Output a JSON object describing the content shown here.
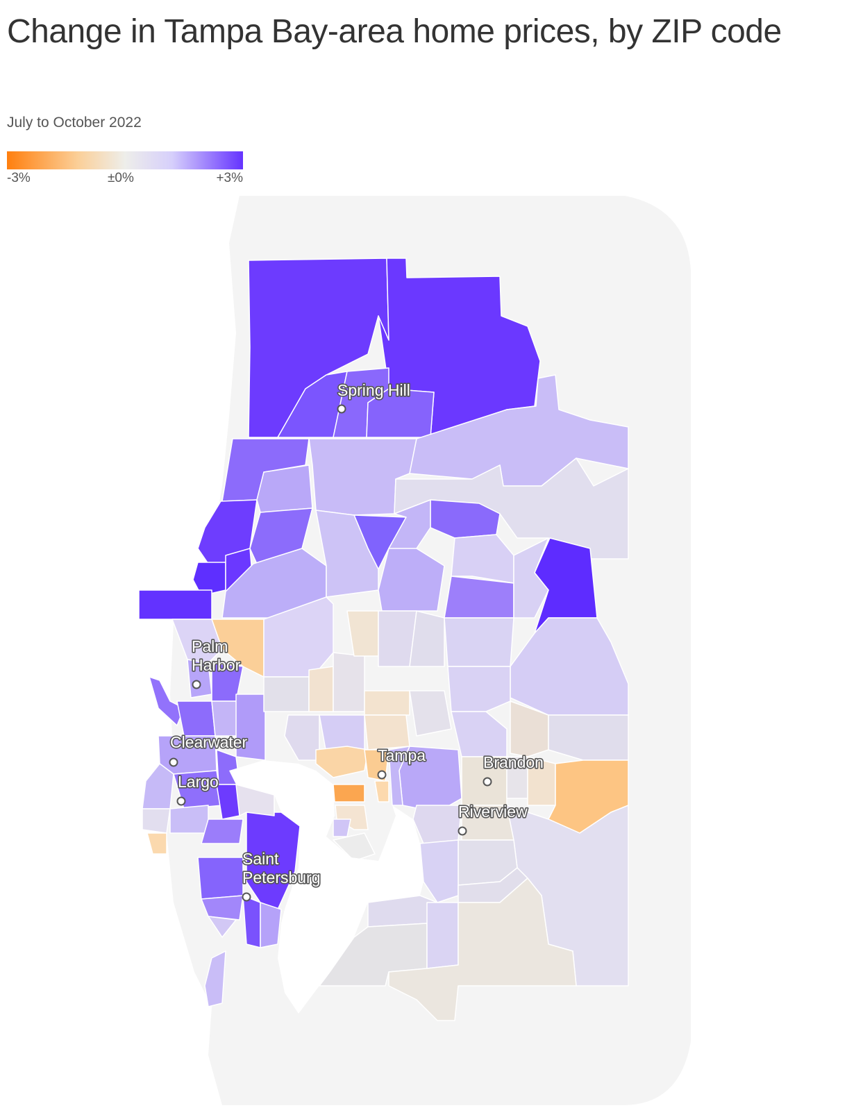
{
  "title": "Change in Tampa Bay-area home prices, by ZIP code",
  "subtitle": "July to October 2022",
  "legend": {
    "min_label": "-3%",
    "mid_label": "±0%",
    "max_label": "+3%",
    "color_low": "#ff7f0e",
    "color_mid": "#eeeeea",
    "color_high": "#6533ff"
  },
  "cities": [
    {
      "name": "spring-hill",
      "line1": "Spring Hill",
      "line2": ""
    },
    {
      "name": "palm-harbor",
      "line1": "Palm",
      "line2": "Harbor"
    },
    {
      "name": "clearwater",
      "line1": "Clearwater",
      "line2": ""
    },
    {
      "name": "largo",
      "line1": "Largo",
      "line2": ""
    },
    {
      "name": "tampa",
      "line1": "Tampa",
      "line2": ""
    },
    {
      "name": "brandon",
      "line1": "Brandon",
      "line2": ""
    },
    {
      "name": "riverview",
      "line1": "Riverview",
      "line2": ""
    },
    {
      "name": "saint-petersburg",
      "line1": "Saint",
      "line2": "Petersburg"
    }
  ]
}
